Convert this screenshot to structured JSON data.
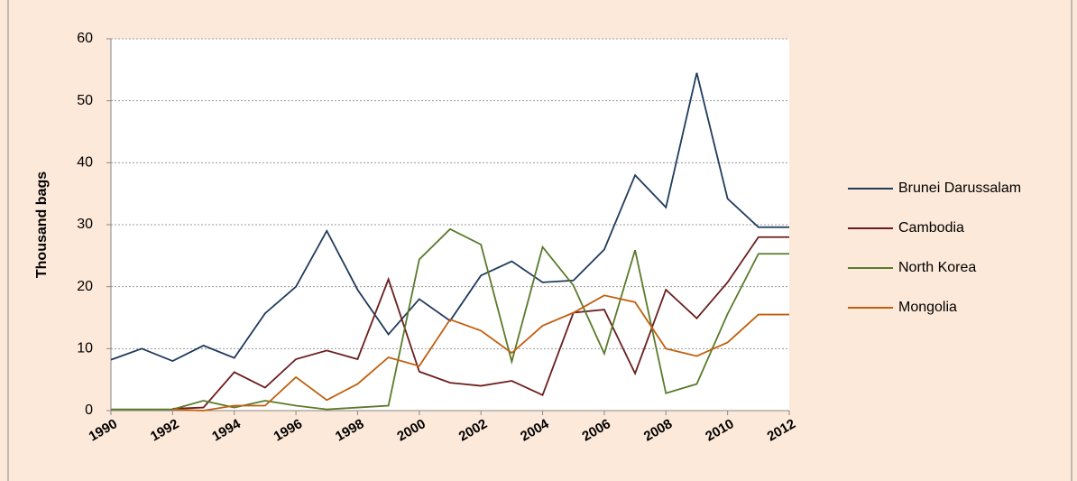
{
  "chart_data": {
    "type": "line",
    "y_label": "Thousand bags",
    "x": [
      1990,
      1991,
      1992,
      1993,
      1994,
      1995,
      1996,
      1997,
      1998,
      1999,
      2000,
      2001,
      2002,
      2003,
      2004,
      2005,
      2006,
      2007,
      2008,
      2009,
      2010,
      2011,
      2012
    ],
    "series": [
      {
        "name": "Brunei Darussalam",
        "color": "#1f3b5c",
        "values": [
          8.2,
          10,
          8,
          10.5,
          8.5,
          15.7,
          20,
          29,
          19.5,
          12.3,
          18,
          14.5,
          21.8,
          24.1,
          20.7,
          21,
          26,
          38,
          32.8,
          54.5,
          34.2,
          29.6,
          29.6
        ]
      },
      {
        "name": "Cambodia",
        "color": "#6b1e1e",
        "values": [
          null,
          null,
          0.3,
          0.5,
          6.2,
          3.7,
          8.3,
          9.7,
          8.3,
          21.2,
          6.3,
          4.5,
          4,
          4.8,
          2.5,
          15.8,
          16.3,
          6,
          19.5,
          14.9,
          20.7,
          28,
          28
        ]
      },
      {
        "name": "North Korea",
        "color": "#5a7a2a",
        "values": [
          0.2,
          0.2,
          0.2,
          1.6,
          0.5,
          1.6,
          0.8,
          0.2,
          0.5,
          0.8,
          24.4,
          29.3,
          26.8,
          7.9,
          26.4,
          20.2,
          9.2,
          25.9,
          2.8,
          4.3,
          15.6,
          25.3,
          25.3
        ]
      },
      {
        "name": "Mongolia",
        "color": "#c0600e",
        "values": [
          null,
          null,
          0.2,
          0,
          0.8,
          0.8,
          5.4,
          1.7,
          4.3,
          8.6,
          7.2,
          14.7,
          12.9,
          9.3,
          13.7,
          15.8,
          18.6,
          17.5,
          10,
          8.8,
          11,
          15.5,
          15.5
        ]
      }
    ],
    "xlim": [
      1990,
      2012
    ],
    "xticks": [
      1990,
      1992,
      1994,
      1996,
      1998,
      2000,
      2002,
      2004,
      2006,
      2008,
      2010,
      2012
    ],
    "ylim": [
      0,
      60
    ],
    "yticks": [
      0,
      10,
      20,
      30,
      40,
      50,
      60
    ],
    "grid": true,
    "legend": "right"
  }
}
